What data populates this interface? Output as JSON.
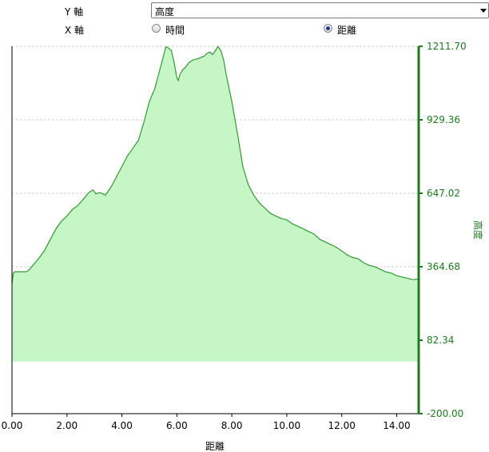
{
  "controls": {
    "y_axis_label": "Y 軸",
    "y_axis_selected": "高度",
    "x_axis_label": "X 軸",
    "x_options": [
      {
        "label": "時間",
        "checked": false
      },
      {
        "label": "距離",
        "checked": true
      }
    ]
  },
  "chart_data": {
    "type": "area",
    "xlabel": "距離",
    "ylabel": "高度",
    "xlim": [
      0,
      14.8
    ],
    "ylim": [
      -200.0,
      1211.7
    ],
    "x_ticks": [
      "0.00",
      "2.00",
      "4.00",
      "6.00",
      "8.00",
      "10.00",
      "12.00",
      "14.00"
    ],
    "y_ticks": [
      "-200.00",
      "82.34",
      "364.68",
      "647.02",
      "929.36",
      "1211.70"
    ],
    "grid": true,
    "baseline": 0,
    "series": [
      {
        "x": [
          0.0,
          0.05,
          0.1,
          0.3,
          0.5,
          0.6,
          0.8,
          1.0,
          1.2,
          1.4,
          1.6,
          1.8,
          2.0,
          2.2,
          2.4,
          2.6,
          2.8,
          2.95,
          3.05,
          3.2,
          3.4,
          3.6,
          3.8,
          4.0,
          4.2,
          4.4,
          4.6,
          4.8,
          5.0,
          5.2,
          5.35,
          5.5,
          5.6,
          5.7,
          5.8,
          5.9,
          6.0,
          6.05,
          6.1,
          6.2,
          6.3,
          6.45,
          6.6,
          6.8,
          7.0,
          7.1,
          7.2,
          7.3,
          7.4,
          7.5,
          7.6,
          7.7,
          7.8,
          8.0,
          8.2,
          8.4,
          8.6,
          8.8,
          9.0,
          9.2,
          9.4,
          9.6,
          9.8,
          10.0,
          10.2,
          10.4,
          10.6,
          10.8,
          11.0,
          11.2,
          11.4,
          11.6,
          11.8,
          12.0,
          12.2,
          12.4,
          12.6,
          12.8,
          13.0,
          13.2,
          13.4,
          13.6,
          13.8,
          14.0,
          14.2,
          14.4,
          14.6,
          14.8
        ],
        "y": [
          300,
          340,
          345,
          345,
          345,
          350,
          375,
          400,
          430,
          470,
          510,
          540,
          560,
          585,
          600,
          625,
          650,
          660,
          645,
          650,
          640,
          670,
          710,
          750,
          790,
          820,
          850,
          920,
          1000,
          1050,
          1110,
          1170,
          1210,
          1205,
          1195,
          1150,
          1090,
          1080,
          1100,
          1120,
          1130,
          1150,
          1160,
          1165,
          1175,
          1185,
          1190,
          1180,
          1195,
          1211,
          1195,
          1160,
          1100,
          1000,
          880,
          750,
          680,
          640,
          610,
          590,
          570,
          560,
          550,
          545,
          530,
          520,
          510,
          500,
          490,
          470,
          460,
          450,
          440,
          425,
          410,
          400,
          395,
          380,
          370,
          365,
          355,
          345,
          340,
          330,
          325,
          320,
          315,
          318
        ]
      }
    ],
    "colors": {
      "line": "#339933",
      "fill": "#c6f5c6",
      "right_axis": "#1f7a1f",
      "grid": "#cfcfcf"
    }
  }
}
